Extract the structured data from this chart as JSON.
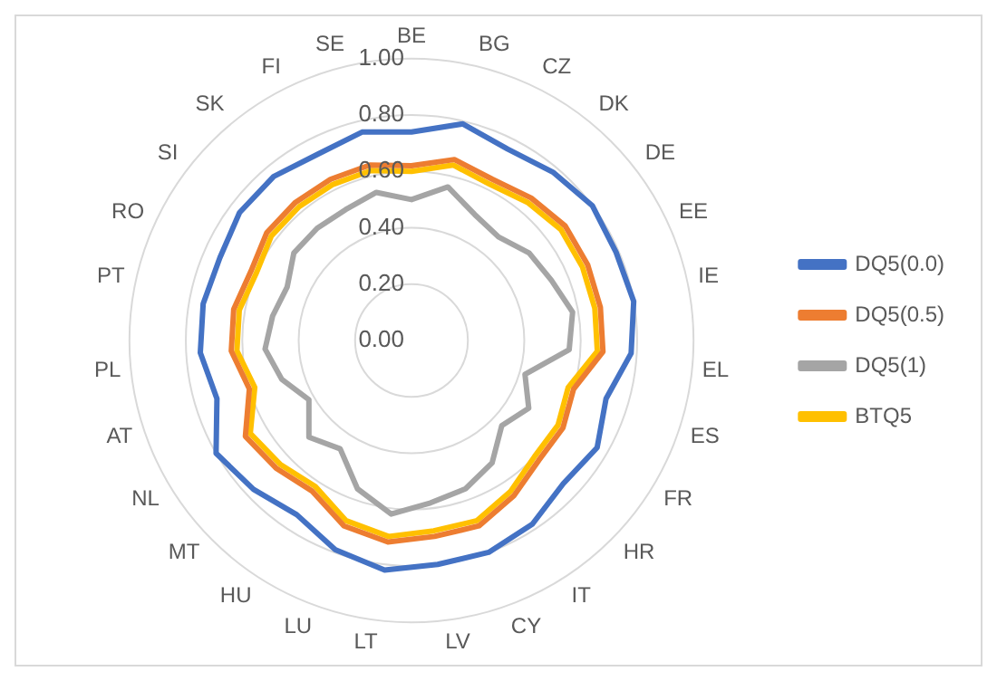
{
  "chart_data": {
    "type": "radar",
    "categories": [
      "BE",
      "BG",
      "CZ",
      "DK",
      "DE",
      "EE",
      "IE",
      "EL",
      "ES",
      "FR",
      "HR",
      "IT",
      "CY",
      "LV",
      "LT",
      "LU",
      "HU",
      "MT",
      "NL",
      "AT",
      "PL",
      "PT",
      "RO",
      "SI",
      "SK",
      "FI",
      "SE"
    ],
    "series": [
      {
        "name": "DQ5(0.0)",
        "color": "#4472c4",
        "values": [
          0.74,
          0.79,
          0.76,
          0.78,
          0.8,
          0.79,
          0.8,
          0.78,
          0.72,
          0.76,
          0.74,
          0.78,
          0.8,
          0.8,
          0.82,
          0.79,
          0.74,
          0.77,
          0.8,
          0.72,
          0.75,
          0.75,
          0.74,
          0.76,
          0.76,
          0.74,
          0.76
        ]
      },
      {
        "name": "DQ5(0.5)",
        "color": "#ed7d31",
        "values": [
          0.62,
          0.66,
          0.64,
          0.66,
          0.68,
          0.68,
          0.68,
          0.68,
          0.6,
          0.62,
          0.62,
          0.66,
          0.7,
          0.7,
          0.72,
          0.7,
          0.64,
          0.66,
          0.68,
          0.6,
          0.64,
          0.64,
          0.62,
          0.64,
          0.64,
          0.64,
          0.64
        ]
      },
      {
        "name": "DQ5(1)",
        "color": "#a5a5a5",
        "values": [
          0.5,
          0.56,
          0.5,
          0.48,
          0.52,
          0.54,
          0.58,
          0.56,
          0.42,
          0.48,
          0.44,
          0.52,
          0.56,
          0.58,
          0.62,
          0.56,
          0.46,
          0.5,
          0.42,
          0.48,
          0.52,
          0.5,
          0.48,
          0.52,
          0.52,
          0.52,
          0.54
        ]
      },
      {
        "name": "BTQ5",
        "color": "#ffc000",
        "values": [
          0.6,
          0.64,
          0.62,
          0.64,
          0.66,
          0.66,
          0.66,
          0.66,
          0.58,
          0.6,
          0.6,
          0.64,
          0.68,
          0.68,
          0.7,
          0.68,
          0.62,
          0.64,
          0.66,
          0.58,
          0.62,
          0.62,
          0.6,
          0.62,
          0.62,
          0.62,
          0.62
        ]
      }
    ],
    "ylim": [
      0,
      1
    ],
    "yticks": [
      {
        "value": 0,
        "label": "0.00"
      },
      {
        "value": 0.2,
        "label": "0.20"
      },
      {
        "value": 0.4,
        "label": "0.40"
      },
      {
        "value": 0.6,
        "label": "0.60"
      },
      {
        "value": 0.8,
        "label": "0.80"
      },
      {
        "value": 1,
        "label": "1.00"
      }
    ],
    "grid": true,
    "legend": "right",
    "marker": "none",
    "line_style": "solid"
  }
}
